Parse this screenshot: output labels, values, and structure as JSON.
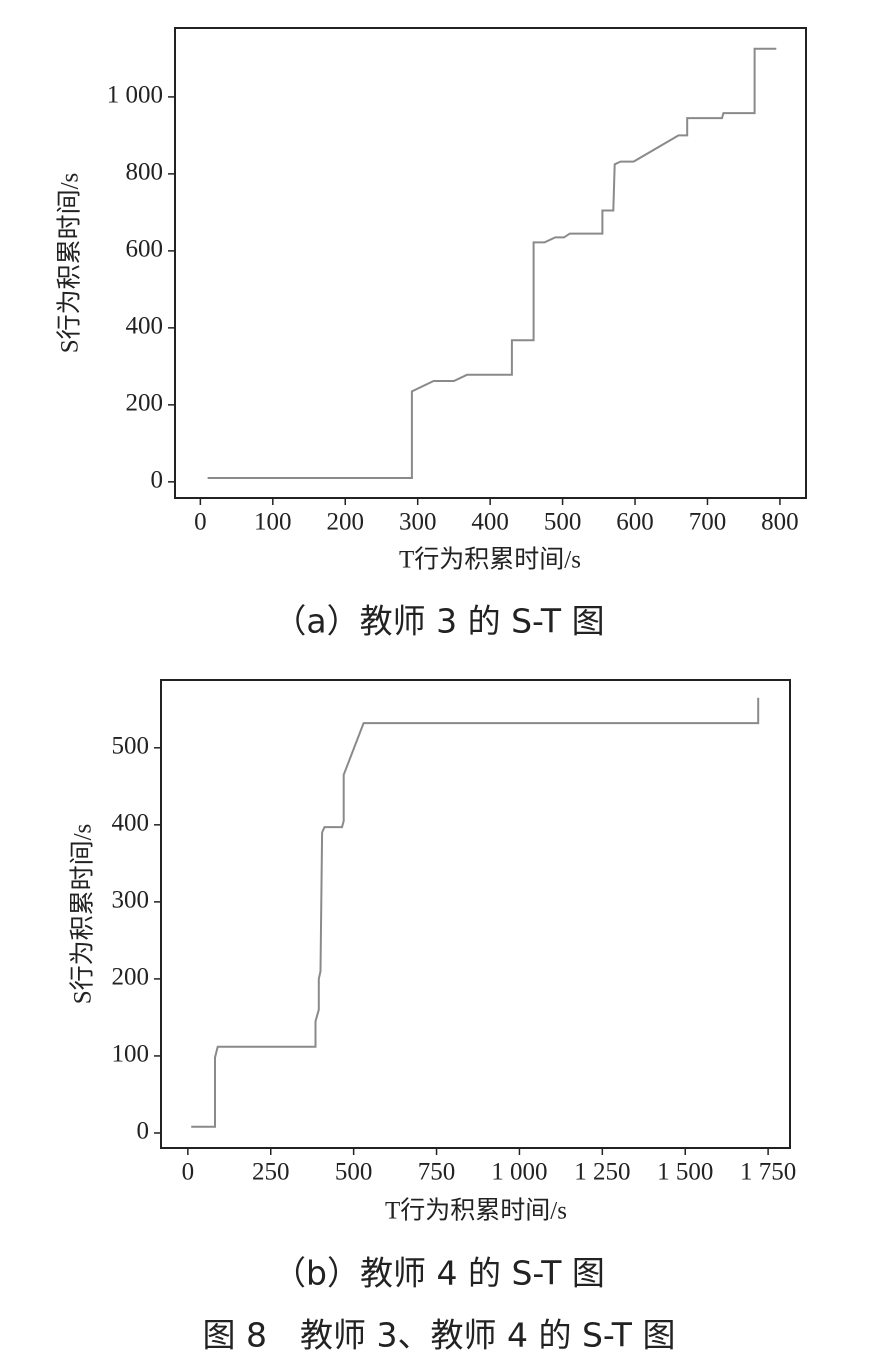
{
  "chart_data": [
    {
      "type": "line",
      "caption": "（a）教师 3 的 S-T 图",
      "xlabel": "T行为积累时间/s",
      "ylabel": "S行为积累时间/s",
      "x": [
        10,
        292,
        292,
        322,
        350,
        368,
        430,
        430,
        460,
        460,
        475,
        490,
        502,
        510,
        555,
        555,
        570,
        572,
        580,
        598,
        660,
        672,
        672,
        720,
        722,
        765,
        765,
        795
      ],
      "values": [
        10,
        10,
        235,
        262,
        262,
        278,
        278,
        368,
        368,
        622,
        622,
        635,
        635,
        645,
        645,
        705,
        705,
        825,
        832,
        832,
        900,
        900,
        945,
        945,
        958,
        958,
        1125,
        1125
      ],
      "color": "#8a8a8a",
      "xlim": [
        -35,
        836
      ],
      "xticks": [
        0,
        100,
        200,
        300,
        400,
        500,
        600,
        700,
        800
      ],
      "ylim": [
        -42,
        1179
      ],
      "yticks": [
        0,
        200,
        400,
        600,
        800,
        {
          "value": 1000,
          "label": "1 000"
        }
      ]
    },
    {
      "type": "line",
      "caption": "（b）教师 4 的 S-T 图",
      "xlabel": "T行为积累时间/s",
      "ylabel": "S行为积累时间/s",
      "x": [
        10,
        82,
        82,
        90,
        385,
        385,
        395,
        395,
        400,
        405,
        412,
        465,
        470,
        470,
        530,
        1720,
        1720
      ],
      "values": [
        8,
        8,
        98,
        112,
        112,
        145,
        160,
        200,
        210,
        390,
        397,
        397,
        405,
        465,
        532,
        532,
        565
      ],
      "color": "#8a8a8a",
      "xlim": [
        -81,
        1816
      ],
      "xticks": [
        0,
        250,
        500,
        750,
        {
          "value": 1000,
          "label": "1 000"
        },
        {
          "value": 1250,
          "label": "1 250"
        },
        {
          "value": 1500,
          "label": "1 500"
        },
        {
          "value": 1750,
          "label": "1 750"
        }
      ],
      "ylim": [
        -19.5,
        588
      ],
      "yticks": [
        0,
        100,
        200,
        300,
        400,
        500
      ]
    }
  ],
  "figure_caption": "图 8　教师 3、教师 4 的 S-T 图"
}
